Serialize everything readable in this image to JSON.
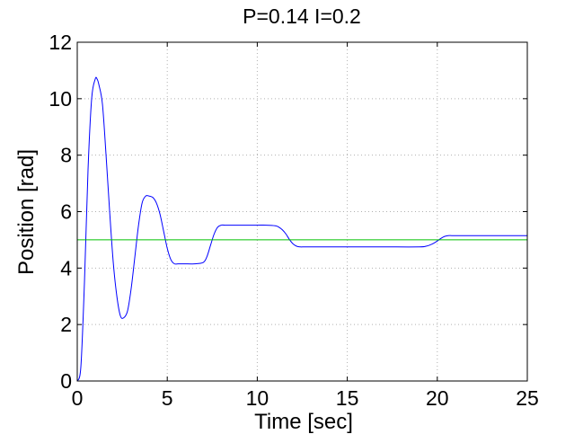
{
  "chart_data": {
    "type": "line",
    "title": "P=0.14 I=0.2",
    "xlabel": "Time [sec]",
    "ylabel": "Position [rad]",
    "xlim": [
      0,
      25
    ],
    "ylim": [
      0,
      12
    ],
    "xticks": [
      "0",
      "5",
      "10",
      "15",
      "20",
      "25"
    ],
    "yticks": [
      "0",
      "2",
      "4",
      "6",
      "8",
      "10",
      "12"
    ],
    "grid": true,
    "legend": "none",
    "series": [
      {
        "color": "#0000ff",
        "x": [
          0,
          0.2,
          0.4,
          0.6,
          0.8,
          1.0,
          1.1,
          1.2,
          1.4,
          1.6,
          1.8,
          2.0,
          2.2,
          2.4,
          2.6,
          2.8,
          3.0,
          3.2,
          3.4,
          3.6,
          3.8,
          4.0,
          4.2,
          4.4,
          4.6,
          4.8,
          5.0,
          5.2,
          5.4,
          5.6,
          5.8,
          6.0,
          6.5,
          7.0,
          7.2,
          7.4,
          7.6,
          7.8,
          8.0,
          8.2,
          8.4,
          9.0,
          10.0,
          10.5,
          11.0,
          11.2,
          11.4,
          11.6,
          11.8,
          12.0,
          12.2,
          12.4,
          12.6,
          13.0,
          15.0,
          17.0,
          19.0,
          19.4,
          19.6,
          19.8,
          20.0,
          20.2,
          20.4,
          20.6,
          20.8,
          21.0,
          22.0,
          23.0,
          24.0,
          25.0
        ],
        "y": [
          0,
          0.5,
          3.5,
          7.5,
          10.0,
          10.7,
          10.7,
          10.5,
          9.8,
          8.0,
          6.0,
          4.2,
          3.0,
          2.3,
          2.25,
          2.5,
          3.3,
          4.4,
          5.5,
          6.3,
          6.55,
          6.55,
          6.5,
          6.3,
          5.9,
          5.3,
          4.7,
          4.3,
          4.15,
          4.15,
          4.15,
          4.15,
          4.15,
          4.2,
          4.4,
          4.8,
          5.2,
          5.45,
          5.52,
          5.52,
          5.52,
          5.52,
          5.52,
          5.52,
          5.5,
          5.45,
          5.35,
          5.2,
          5.0,
          4.85,
          4.77,
          4.75,
          4.75,
          4.75,
          4.75,
          4.75,
          4.75,
          4.78,
          4.82,
          4.88,
          4.96,
          5.05,
          5.12,
          5.15,
          5.15,
          5.15,
          5.15,
          5.15,
          5.15,
          5.15
        ]
      },
      {
        "color": "#00c000",
        "x": [
          0,
          25
        ],
        "y": [
          5,
          5
        ]
      }
    ]
  }
}
